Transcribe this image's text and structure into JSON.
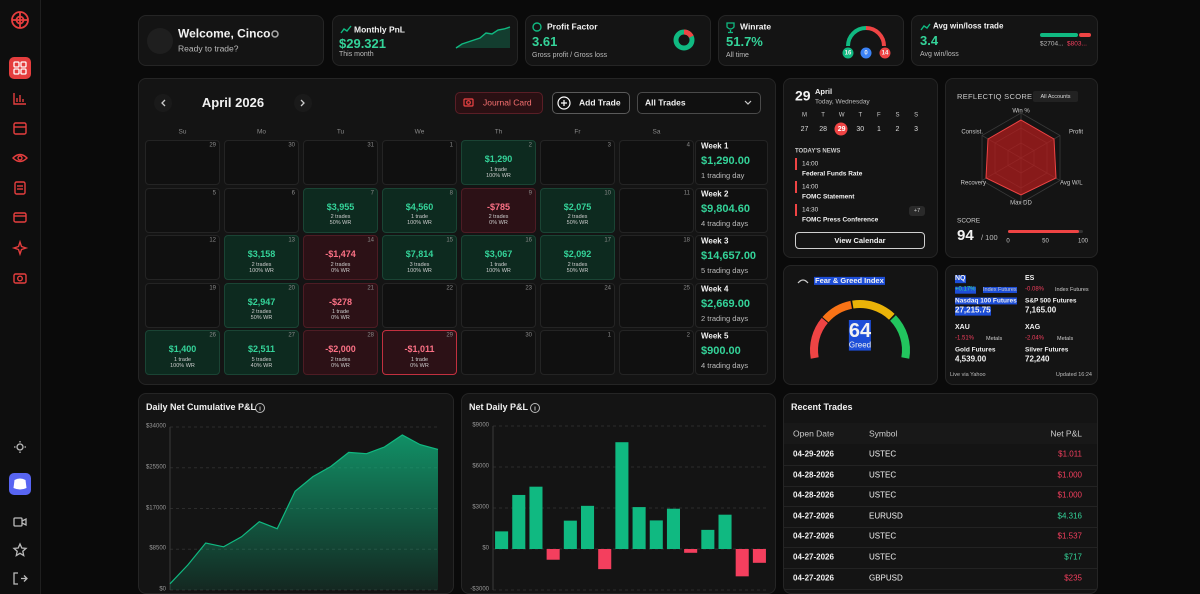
{
  "header": {
    "welcome": {
      "title": "Welcome, Cinco",
      "subtitle": "Ready to trade?"
    },
    "monthly_pnl": {
      "label": "Monthly PnL",
      "value": "$29.321",
      "caption": "This month"
    },
    "profit_factor": {
      "label": "Profit Factor",
      "value": "3.61",
      "caption": "Gross profit / Gross loss"
    },
    "winrate": {
      "label": "Winrate",
      "value": "51.7%",
      "caption": "All time",
      "counts": [
        16,
        0,
        14
      ]
    },
    "avg_win_loss": {
      "label": "Avg win/loss trade",
      "value": "3.4",
      "caption": "Avg win/loss",
      "avg_win": "$2704...",
      "avg_loss": "$803..."
    }
  },
  "calendar": {
    "title": "April 2026",
    "journal_button": "Journal Card",
    "add_button": "Add Trade",
    "filter": "All Trades",
    "weekdays": [
      "Su",
      "Mo",
      "Tu",
      "We",
      "Th",
      "Fr",
      "Sa"
    ],
    "weeks": [
      {
        "label": "Week 1",
        "total": "$1,290.00",
        "trading_days": "1 trading day",
        "days": [
          {
            "day": 29
          },
          {
            "day": 30
          },
          {
            "day": 31
          },
          {
            "day": 1
          },
          {
            "day": 2,
            "pnl": "$1,290",
            "trades": "1 trade",
            "wr": "100% WR",
            "result": "win"
          },
          {
            "day": 3
          },
          {
            "day": 4
          }
        ]
      },
      {
        "label": "Week 2",
        "total": "$9,804.60",
        "trading_days": "4 trading days",
        "days": [
          {
            "day": 5
          },
          {
            "day": 6
          },
          {
            "day": 7,
            "pnl": "$3,955",
            "trades": "2 trades",
            "wr": "50% WR",
            "result": "win"
          },
          {
            "day": 8,
            "pnl": "$4,560",
            "trades": "1 trade",
            "wr": "100% WR",
            "result": "win"
          },
          {
            "day": 9,
            "pnl": "-$785",
            "trades": "2 trades",
            "wr": "0% WR",
            "result": "loss"
          },
          {
            "day": 10,
            "pnl": "$2,075",
            "trades": "2 trades",
            "wr": "50% WR",
            "result": "win"
          },
          {
            "day": 11
          }
        ]
      },
      {
        "label": "Week 3",
        "total": "$14,657.00",
        "trading_days": "5 trading days",
        "days": [
          {
            "day": 12
          },
          {
            "day": 13,
            "pnl": "$3,158",
            "trades": "2 trades",
            "wr": "100% WR",
            "result": "win"
          },
          {
            "day": 14,
            "pnl": "-$1,474",
            "trades": "2 trades",
            "wr": "0% WR",
            "result": "loss"
          },
          {
            "day": 15,
            "pnl": "$7,814",
            "trades": "3 trades",
            "wr": "100% WR",
            "result": "win"
          },
          {
            "day": 16,
            "pnl": "$3,067",
            "trades": "1 trade",
            "wr": "100% WR",
            "result": "win"
          },
          {
            "day": 17,
            "pnl": "$2,092",
            "trades": "2 trades",
            "wr": "50% WR",
            "result": "win"
          },
          {
            "day": 18
          }
        ]
      },
      {
        "label": "Week 4",
        "total": "$2,669.00",
        "trading_days": "2 trading days",
        "days": [
          {
            "day": 19
          },
          {
            "day": 20,
            "pnl": "$2,947",
            "trades": "2 trades",
            "wr": "50% WR",
            "result": "win"
          },
          {
            "day": 21,
            "pnl": "-$278",
            "trades": "1 trade",
            "wr": "0% WR",
            "result": "loss"
          },
          {
            "day": 22
          },
          {
            "day": 23
          },
          {
            "day": 24
          },
          {
            "day": 25
          }
        ]
      },
      {
        "label": "Week 5",
        "total": "$900.00",
        "trading_days": "4 trading days",
        "days": [
          {
            "day": 26,
            "pnl": "$1,400",
            "trades": "1 trade",
            "wr": "100% WR",
            "result": "win"
          },
          {
            "day": 27,
            "pnl": "$2,511",
            "trades": "5 trades",
            "wr": "40% WR",
            "result": "win"
          },
          {
            "day": 28,
            "pnl": "-$2,000",
            "trades": "2 trades",
            "wr": "0% WR",
            "result": "loss"
          },
          {
            "day": 29,
            "pnl": "-$1,011",
            "trades": "1 trade",
            "wr": "0% WR",
            "result": "loss",
            "today": true
          },
          {
            "day": 30
          },
          {
            "day": 1
          },
          {
            "day": 2
          }
        ]
      }
    ]
  },
  "date_card": {
    "day": 29,
    "month": "April",
    "weekday": "Today, Wednesday",
    "week_headers": [
      "M",
      "T",
      "W",
      "T",
      "F",
      "S",
      "S"
    ],
    "week_days": [
      27,
      28,
      29,
      30,
      1,
      2,
      3
    ],
    "news_title": "TODAY'S NEWS",
    "news": [
      {
        "time": "14:00",
        "title": "Federal Funds Rate"
      },
      {
        "time": "14:00",
        "title": "FOMC Statement"
      },
      {
        "time": "14:30",
        "title": "FOMC Press Conference"
      }
    ],
    "more": "+7",
    "button": "View Calendar"
  },
  "score": {
    "title": "REFLECTIQ SCORE",
    "filter": "All Accounts",
    "axes": [
      "Win %",
      "Profit",
      "Avg W/L",
      "Max DD",
      "Recovery",
      "Consist."
    ],
    "label": "SCORE",
    "value": 94,
    "max_label": "/ 100",
    "scale": [
      0,
      50,
      100
    ]
  },
  "fear_greed": {
    "title": "Fear & Greed Index",
    "value": 64,
    "label": "Greed"
  },
  "markets": {
    "items": [
      {
        "symbol": "NQ",
        "change": "+0.17%",
        "direction": "up",
        "category": "Index Futures",
        "name": "Nasdaq 100 Futures",
        "price": "27,215.75"
      },
      {
        "symbol": "ES",
        "change": "-0.08%",
        "direction": "down",
        "category": "Index Futures",
        "name": "S&P 500 Futures",
        "price": "7,165.00"
      },
      {
        "symbol": "XAU",
        "change": "-1.51%",
        "direction": "down",
        "category": "Metals",
        "name": "Gold Futures",
        "price": "4,539.00"
      },
      {
        "symbol": "XAG",
        "change": "-2.04%",
        "direction": "down",
        "category": "Metals",
        "name": "Silver Futures",
        "price": "72,240"
      }
    ],
    "source": "Live via Yahoo",
    "updated": "Updated 16:24"
  },
  "cumulative_chart": {
    "type": "area",
    "title": "Daily Net Cumulative P&L",
    "color": "#10b981",
    "values": [
      1290,
      5245,
      9805,
      9020,
      11095,
      14253,
      12779,
      20593,
      23660,
      25752,
      28699,
      28421,
      29821,
      32332,
      30332,
      29321
    ],
    "ylim": [
      0,
      34000
    ],
    "yticks": [
      {
        "value": 0,
        "label": "$0"
      },
      {
        "value": 8500,
        "label": "$8500"
      },
      {
        "value": 17000,
        "label": "$17000"
      },
      {
        "value": 25500,
        "label": "$25500"
      },
      {
        "value": 34000,
        "label": "$34000"
      }
    ],
    "grid": true
  },
  "daily_chart": {
    "type": "bar",
    "title": "Net Daily P&L",
    "colors": {
      "positive": "#10b981",
      "negative": "#f43f5e"
    },
    "values": [
      1290,
      3955,
      4560,
      -785,
      2075,
      3158,
      -1474,
      7814,
      3067,
      2092,
      2947,
      -278,
      1400,
      2511,
      -2000,
      -1011
    ],
    "ylim": [
      -3000,
      9000
    ],
    "yticks": [
      {
        "value": -3000,
        "label": "-$3000"
      },
      {
        "value": 0,
        "label": "$0"
      },
      {
        "value": 3000,
        "label": "$3000"
      },
      {
        "value": 6000,
        "label": "$6000"
      },
      {
        "value": 9000,
        "label": "$9000"
      }
    ],
    "grid": true
  },
  "recent_trades": {
    "title": "Recent Trades",
    "columns": [
      "Open Date",
      "Symbol",
      "Net P&L"
    ],
    "rows": [
      {
        "date": "04-29-2026",
        "symbol": "USTEC",
        "pnl": "$1.011",
        "result": "loss"
      },
      {
        "date": "04-28-2026",
        "symbol": "USTEC",
        "pnl": "$1.000",
        "result": "loss"
      },
      {
        "date": "04-28-2026",
        "symbol": "USTEC",
        "pnl": "$1.000",
        "result": "loss"
      },
      {
        "date": "04-27-2026",
        "symbol": "EURUSD",
        "pnl": "$4.316",
        "result": "win"
      },
      {
        "date": "04-27-2026",
        "symbol": "USTEC",
        "pnl": "$1.537",
        "result": "loss"
      },
      {
        "date": "04-27-2026",
        "symbol": "USTEC",
        "pnl": "$717",
        "result": "win"
      },
      {
        "date": "04-27-2026",
        "symbol": "GBPUSD",
        "pnl": "$235",
        "result": "loss"
      }
    ]
  }
}
